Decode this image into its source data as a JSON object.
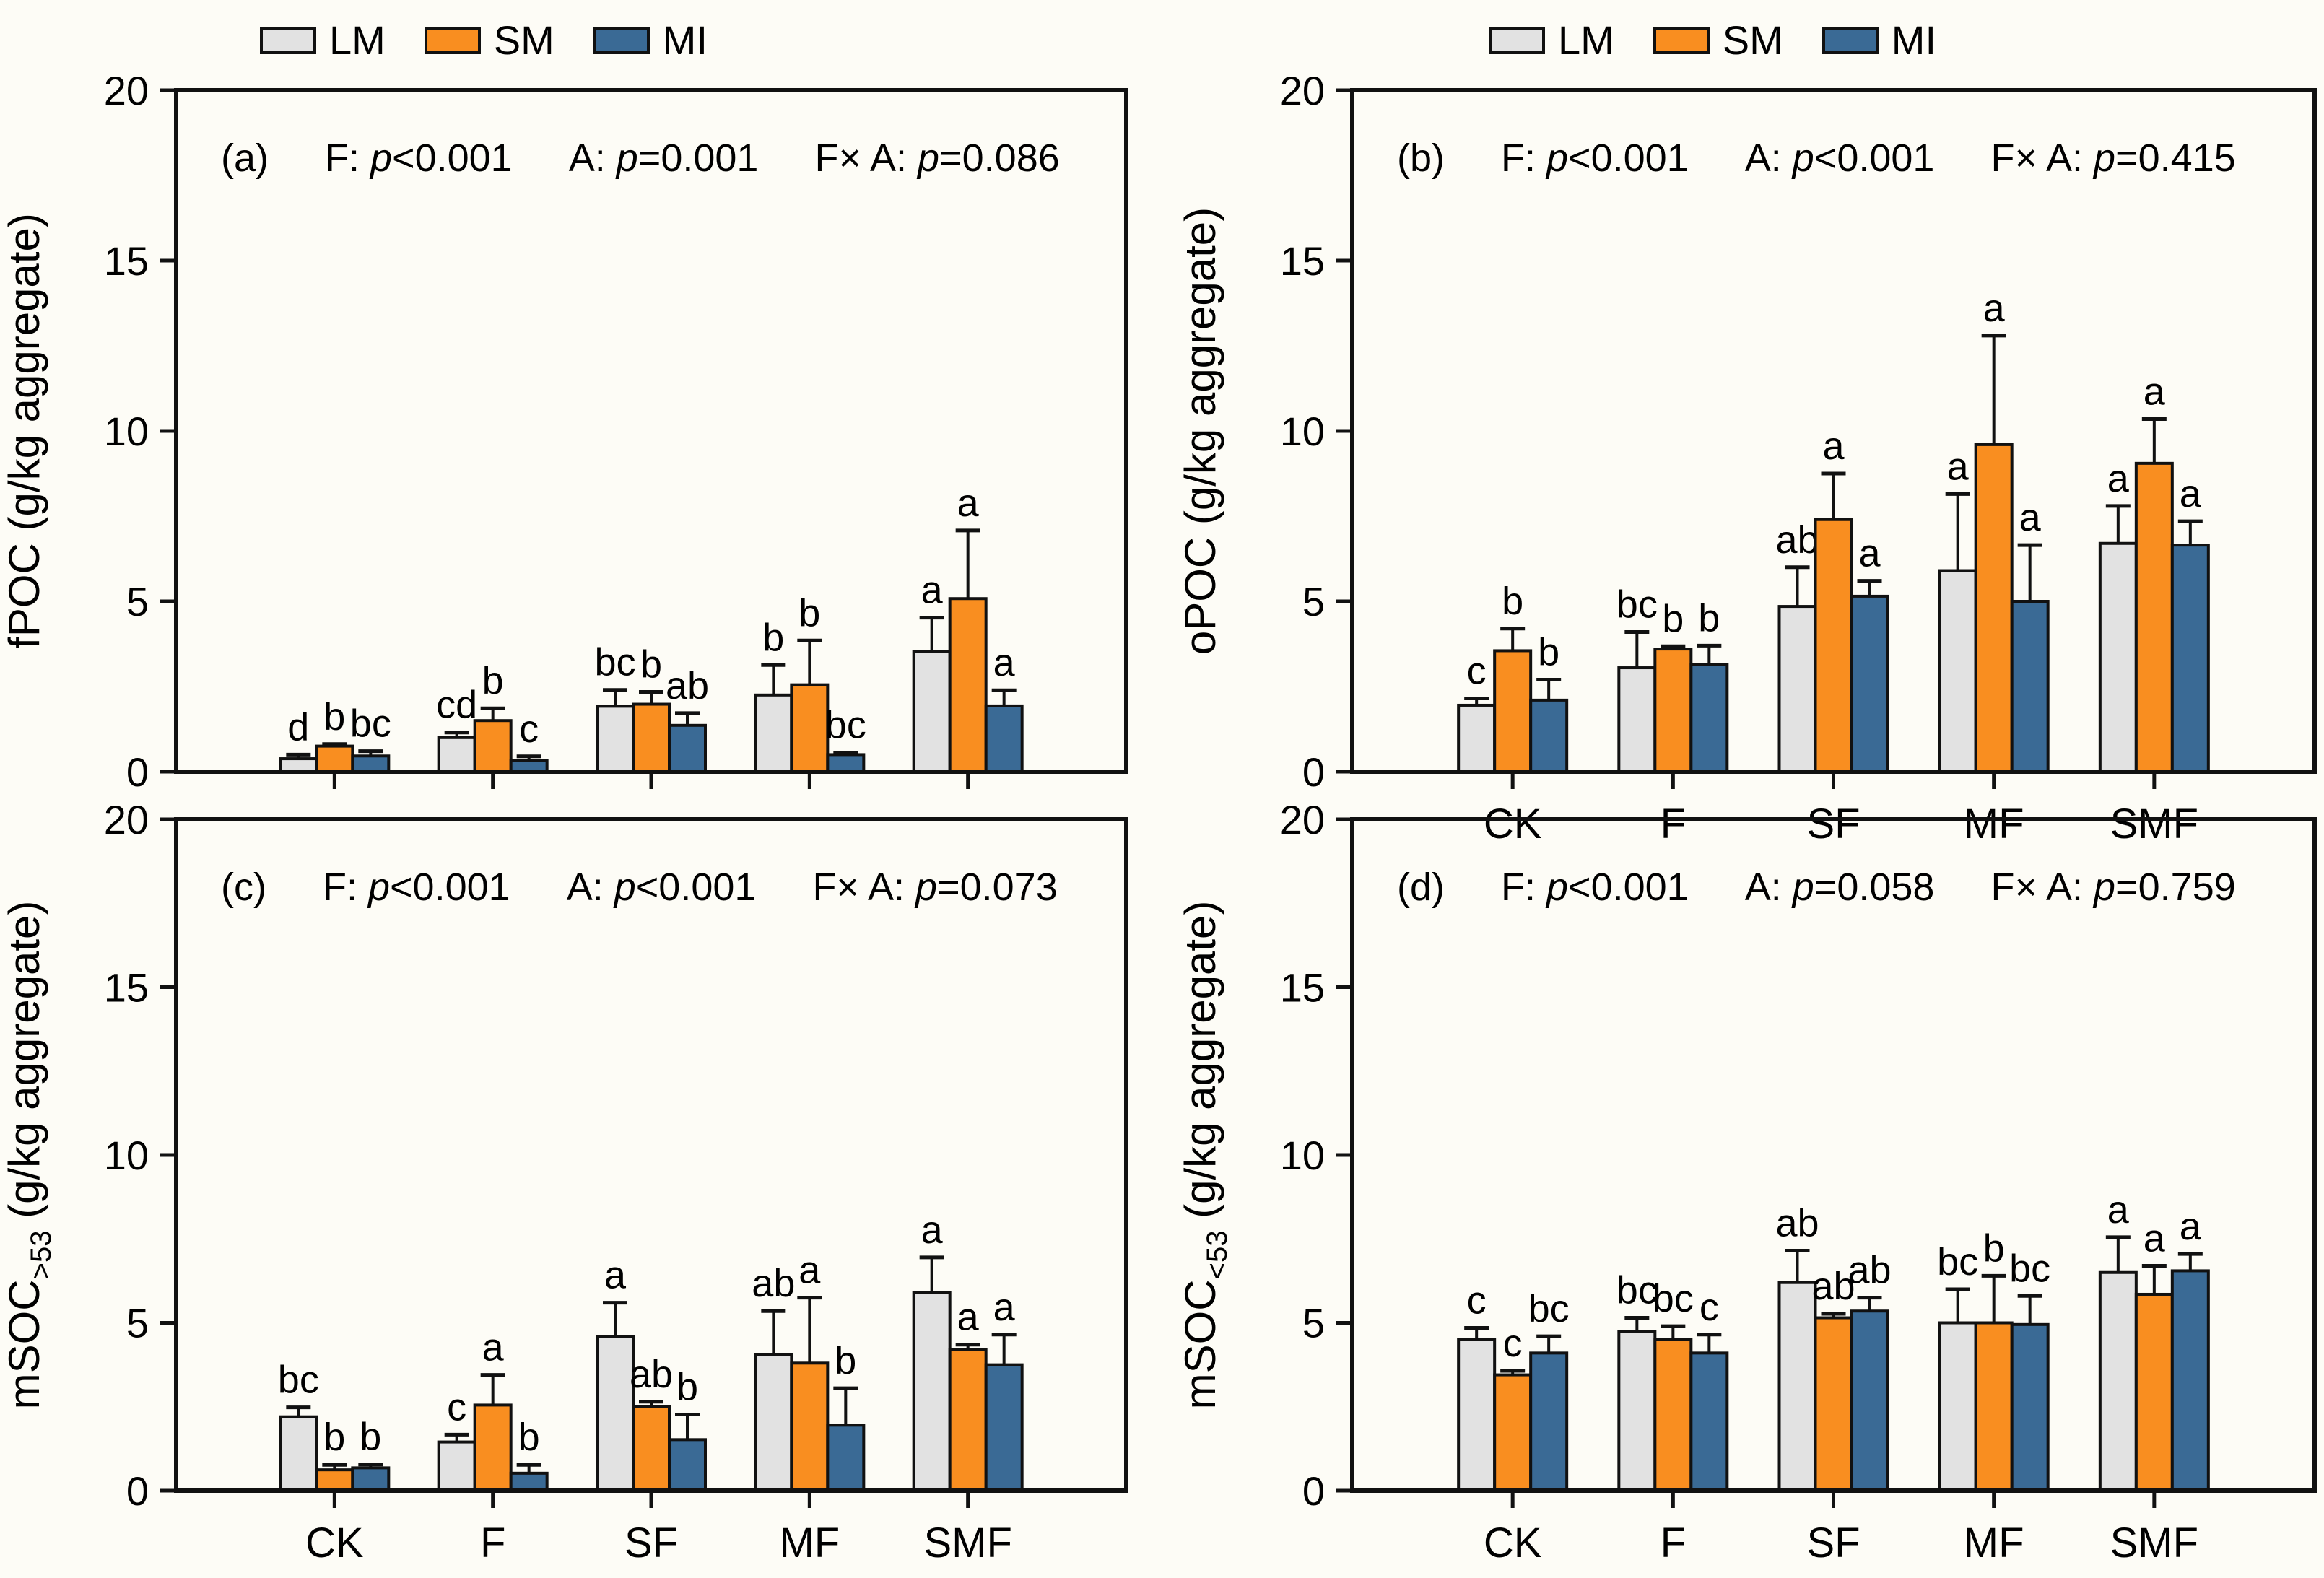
{
  "figure": {
    "background": "#FDFCF6",
    "outline_color": "#111111"
  },
  "legend": {
    "items": [
      {
        "label": "LM",
        "color": "#E2E2E2"
      },
      {
        "label": "SM",
        "color": "#F98E20"
      },
      {
        "label": "MI",
        "color": "#3A6A95"
      }
    ]
  },
  "chart_data": [
    {
      "type": "bar",
      "panel_label": "(a)",
      "ylabel": {
        "pre": "fPOC",
        "sub": "",
        "post": " (g/kg aggregate)"
      },
      "stats": [
        {
          "factor": "F: ",
          "p": "p",
          "value": "<0.001"
        },
        {
          "factor": "A: ",
          "p": "p",
          "value": "=0.001"
        },
        {
          "factor": "F× A: ",
          "p": "p",
          "value": "=0.086"
        }
      ],
      "ylim": [
        0,
        20
      ],
      "yticks": [
        0,
        5,
        10,
        15,
        20
      ],
      "categories": [
        "CK",
        "F",
        "SF",
        "MF",
        "SMF"
      ],
      "show_xlabels": false,
      "series": [
        {
          "name": "LM",
          "values": [
            0.38,
            1.0,
            1.92,
            2.25,
            3.52
          ],
          "errors": [
            0.12,
            0.15,
            0.48,
            0.88,
            1.0
          ],
          "letters": [
            "d",
            "cd",
            "bc",
            "b",
            "a"
          ]
        },
        {
          "name": "SM",
          "values": [
            0.75,
            1.5,
            1.98,
            2.55,
            5.08
          ],
          "errors": [
            0.06,
            0.36,
            0.36,
            1.3,
            2.0
          ],
          "letters": [
            "b",
            "b",
            "b",
            "b",
            "a"
          ]
        },
        {
          "name": "MI",
          "values": [
            0.46,
            0.33,
            1.36,
            0.5,
            1.93
          ],
          "errors": [
            0.14,
            0.12,
            0.36,
            0.06,
            0.46
          ],
          "letters": [
            "bc",
            "c",
            "ab",
            "bc",
            "a"
          ]
        }
      ]
    },
    {
      "type": "bar",
      "panel_label": "(b)",
      "ylabel": {
        "pre": "oPOC",
        "sub": "",
        "post": " (g/kg aggregate)"
      },
      "stats": [
        {
          "factor": "F: ",
          "p": "p",
          "value": "<0.001"
        },
        {
          "factor": "A:  ",
          "p": "p",
          "value": "<0.001"
        },
        {
          "factor": "F× A: ",
          "p": "p",
          "value": "=0.415"
        }
      ],
      "ylim": [
        0,
        20
      ],
      "yticks": [
        0,
        5,
        10,
        15,
        20
      ],
      "categories": [
        "CK",
        "F",
        "SF",
        "MF",
        "SMF"
      ],
      "show_xlabels": true,
      "series": [
        {
          "name": "LM",
          "values": [
            1.95,
            3.05,
            4.85,
            5.9,
            6.7
          ],
          "errors": [
            0.2,
            1.05,
            1.15,
            2.25,
            1.1
          ],
          "letters": [
            "c",
            "bc",
            "ab",
            "a",
            "a"
          ]
        },
        {
          "name": "SM",
          "values": [
            3.55,
            3.6,
            7.4,
            9.6,
            9.05
          ],
          "errors": [
            0.65,
            0.08,
            1.35,
            3.2,
            1.3
          ],
          "letters": [
            "b",
            "b",
            "a",
            "a",
            "a"
          ]
        },
        {
          "name": "MI",
          "values": [
            2.1,
            3.15,
            5.15,
            5.0,
            6.65
          ],
          "errors": [
            0.6,
            0.55,
            0.45,
            1.65,
            0.7
          ],
          "letters": [
            "b",
            "b",
            "a",
            "a",
            "a"
          ]
        }
      ]
    },
    {
      "type": "bar",
      "panel_label": "(c)",
      "ylabel": {
        "pre": "mSOC",
        "sub": ">53",
        "post": " (g/kg aggregate)"
      },
      "stats": [
        {
          "factor": "F: ",
          "p": "p",
          "value": "<0.001"
        },
        {
          "factor": "A: ",
          "p": "p",
          "value": "<0.001"
        },
        {
          "factor": "F× A: ",
          "p": "p",
          "value": "=0.073"
        }
      ],
      "ylim": [
        0,
        20
      ],
      "yticks": [
        0,
        5,
        10,
        15,
        20
      ],
      "categories": [
        "CK",
        "F",
        "SF",
        "MF",
        "SMF"
      ],
      "show_xlabels": true,
      "series": [
        {
          "name": "LM",
          "values": [
            2.2,
            1.45,
            4.6,
            4.05,
            5.9
          ],
          "errors": [
            0.28,
            0.22,
            1.0,
            1.3,
            1.05
          ],
          "letters": [
            "bc",
            "c",
            "a",
            "ab",
            "a"
          ]
        },
        {
          "name": "SM",
          "values": [
            0.62,
            2.55,
            2.5,
            3.8,
            4.2
          ],
          "errors": [
            0.15,
            0.9,
            0.15,
            1.95,
            0.15
          ],
          "letters": [
            "b",
            "a",
            "ab",
            "a",
            "a"
          ]
        },
        {
          "name": "MI",
          "values": [
            0.68,
            0.52,
            1.52,
            1.95,
            3.75
          ],
          "errors": [
            0.1,
            0.25,
            0.75,
            1.1,
            0.9
          ],
          "letters": [
            "b",
            "b",
            "b",
            "b",
            "a"
          ]
        }
      ]
    },
    {
      "type": "bar",
      "panel_label": "(d)",
      "ylabel": {
        "pre": "mSOC",
        "sub": "<53",
        "post": " (g/kg aggregate)"
      },
      "stats": [
        {
          "factor": "F: ",
          "p": "p",
          "value": "<0.001"
        },
        {
          "factor": "A: ",
          "p": "p",
          "value": "=0.058"
        },
        {
          "factor": "F× A: ",
          "p": "p",
          "value": "=0.759"
        }
      ],
      "ylim": [
        0,
        20
      ],
      "yticks": [
        0,
        5,
        10,
        15,
        20
      ],
      "categories": [
        "CK",
        "F",
        "SF",
        "MF",
        "SMF"
      ],
      "show_xlabels": true,
      "series": [
        {
          "name": "LM",
          "values": [
            4.5,
            4.75,
            6.2,
            5.0,
            6.5
          ],
          "errors": [
            0.35,
            0.4,
            0.95,
            1.0,
            1.05
          ],
          "letters": [
            "c",
            "bc",
            "ab",
            "bc",
            "a"
          ]
        },
        {
          "name": "SM",
          "values": [
            3.45,
            4.5,
            5.15,
            5.0,
            5.85
          ],
          "errors": [
            0.12,
            0.4,
            0.12,
            1.4,
            0.85
          ],
          "letters": [
            "c",
            "bc",
            "ab",
            "b",
            "a"
          ]
        },
        {
          "name": "MI",
          "values": [
            4.1,
            4.1,
            5.35,
            4.95,
            6.55
          ],
          "errors": [
            0.5,
            0.55,
            0.4,
            0.85,
            0.5
          ],
          "letters": [
            "bc",
            "c",
            "ab",
            "bc",
            "a"
          ]
        }
      ]
    }
  ]
}
